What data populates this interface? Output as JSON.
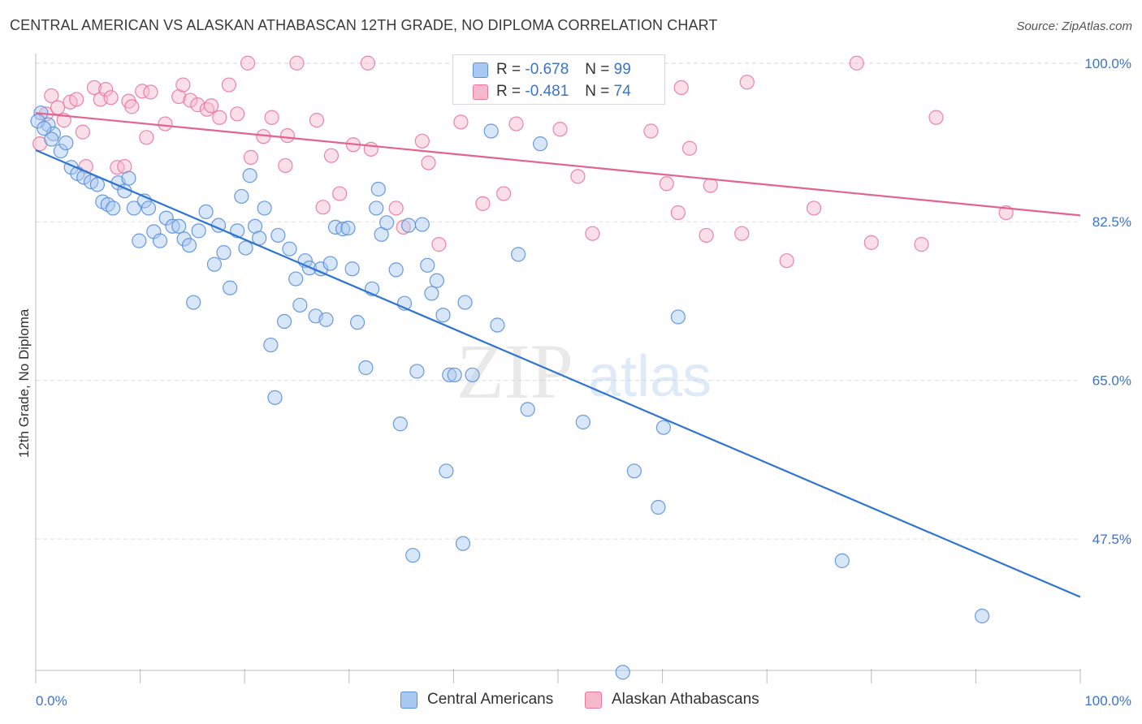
{
  "header": {
    "title": "CENTRAL AMERICAN VS ALASKAN ATHABASCAN 12TH GRADE, NO DIPLOMA CORRELATION CHART",
    "source": "Source: ZipAtlas.com"
  },
  "watermark": {
    "zip": "ZIP",
    "atlas": "atlas"
  },
  "legend_top": {
    "rows": [
      {
        "r_label": "R = ",
        "r_value": "-0.678",
        "n_label": "N = ",
        "n_value": "99"
      },
      {
        "r_label": "R = ",
        "r_value": "-0.481",
        "n_label": "N = ",
        "n_value": "74"
      }
    ]
  },
  "legend_bottom": {
    "items": [
      "Central Americans",
      "Alaskan Athabascans"
    ]
  },
  "colors": {
    "blue_fill": "#a9c8f2",
    "blue_stroke": "#5b8fd9",
    "blue_line": "#2f74d0",
    "pink_fill": "#f7b8cb",
    "pink_stroke": "#e8789c",
    "pink_line": "#e0648f",
    "tick_label": "#3b73c9",
    "grid": "#dddddd"
  },
  "chart_data": {
    "type": "scatter",
    "title": "CENTRAL AMERICAN VS ALASKAN ATHABASCAN 12TH GRADE, NO DIPLOMA CORRELATION CHART",
    "xlabel": "",
    "ylabel": "12th Grade, No Diploma",
    "xlim": [
      0,
      100
    ],
    "ylim": [
      33,
      101.5
    ],
    "x_tick_labels": [
      "0.0%",
      "100.0%"
    ],
    "y_ticks": [
      {
        "value": 100,
        "label": "100.0%"
      },
      {
        "value": 82.5,
        "label": "82.5%"
      },
      {
        "value": 65,
        "label": "65.0%"
      },
      {
        "value": 47.5,
        "label": "47.5%"
      }
    ],
    "grid": true,
    "legend_position": "bottom",
    "series": [
      {
        "name": "Central Americans",
        "r": -0.678,
        "n": 99,
        "trend": [
          [
            0,
            90.4
          ],
          [
            100,
            41.1
          ]
        ],
        "points": [
          [
            0.5,
            94.5
          ],
          [
            1.2,
            93.2
          ],
          [
            1.7,
            92.2
          ],
          [
            2.4,
            90.3
          ],
          [
            2.9,
            91.2
          ],
          [
            3.4,
            88.5
          ],
          [
            4.0,
            87.8
          ],
          [
            4.6,
            87.4
          ],
          [
            5.3,
            86.9
          ],
          [
            5.9,
            86.6
          ],
          [
            6.4,
            84.7
          ],
          [
            6.9,
            84.4
          ],
          [
            7.4,
            84.0
          ],
          [
            7.9,
            86.8
          ],
          [
            8.5,
            85.9
          ],
          [
            8.9,
            87.3
          ],
          [
            9.4,
            84.0
          ],
          [
            9.9,
            80.4
          ],
          [
            10.4,
            84.8
          ],
          [
            10.8,
            84.0
          ],
          [
            11.3,
            81.4
          ],
          [
            11.9,
            80.4
          ],
          [
            12.5,
            82.9
          ],
          [
            13.1,
            82.0
          ],
          [
            13.7,
            82.0
          ],
          [
            14.2,
            80.6
          ],
          [
            14.7,
            79.9
          ],
          [
            15.1,
            73.6
          ],
          [
            15.6,
            81.5
          ],
          [
            16.3,
            83.6
          ],
          [
            17.1,
            77.8
          ],
          [
            17.5,
            82.1
          ],
          [
            18.0,
            79.1
          ],
          [
            18.6,
            75.2
          ],
          [
            19.3,
            81.5
          ],
          [
            19.7,
            85.3
          ],
          [
            20.1,
            79.6
          ],
          [
            20.5,
            87.6
          ],
          [
            21.0,
            82.0
          ],
          [
            21.4,
            80.7
          ],
          [
            21.9,
            84.0
          ],
          [
            22.5,
            68.9
          ],
          [
            22.9,
            63.1
          ],
          [
            23.2,
            81.0
          ],
          [
            23.8,
            71.5
          ],
          [
            24.3,
            79.5
          ],
          [
            24.9,
            76.2
          ],
          [
            25.3,
            73.3
          ],
          [
            25.8,
            78.2
          ],
          [
            26.2,
            77.4
          ],
          [
            26.8,
            72.1
          ],
          [
            27.3,
            77.3
          ],
          [
            27.8,
            71.7
          ],
          [
            28.2,
            77.9
          ],
          [
            28.7,
            81.9
          ],
          [
            29.4,
            81.7
          ],
          [
            29.9,
            81.8
          ],
          [
            30.3,
            77.3
          ],
          [
            30.8,
            71.4
          ],
          [
            31.6,
            66.4
          ],
          [
            32.2,
            75.1
          ],
          [
            32.6,
            84.0
          ],
          [
            32.8,
            86.1
          ],
          [
            33.1,
            81.1
          ],
          [
            33.6,
            82.4
          ],
          [
            34.5,
            77.2
          ],
          [
            34.9,
            60.2
          ],
          [
            35.3,
            73.5
          ],
          [
            35.7,
            82.1
          ],
          [
            36.1,
            45.7
          ],
          [
            36.5,
            66.0
          ],
          [
            37.0,
            82.2
          ],
          [
            37.5,
            77.7
          ],
          [
            37.9,
            74.6
          ],
          [
            38.4,
            76.0
          ],
          [
            39.0,
            72.2
          ],
          [
            39.3,
            55.0
          ],
          [
            39.6,
            65.6
          ],
          [
            40.1,
            65.6
          ],
          [
            40.9,
            47.0
          ],
          [
            41.1,
            73.6
          ],
          [
            41.8,
            65.6
          ],
          [
            43.6,
            92.5
          ],
          [
            44.2,
            71.1
          ],
          [
            46.2,
            78.9
          ],
          [
            47.1,
            61.8
          ],
          [
            48.3,
            91.1
          ],
          [
            48.9,
            100.0
          ],
          [
            52.4,
            60.4
          ],
          [
            56.2,
            32.8
          ],
          [
            57.3,
            55.0
          ],
          [
            59.6,
            51.0
          ],
          [
            60.1,
            59.8
          ],
          [
            61.5,
            72.0
          ],
          [
            77.2,
            45.1
          ],
          [
            90.6,
            39.0
          ],
          [
            0.2,
            93.6
          ],
          [
            0.8,
            92.8
          ],
          [
            1.5,
            91.6
          ]
        ]
      },
      {
        "name": "Alaskan Athabascans",
        "r": -0.481,
        "n": 74,
        "trend": [
          [
            0,
            94.5
          ],
          [
            100,
            83.2
          ]
        ],
        "points": [
          [
            0.4,
            91.1
          ],
          [
            1.0,
            94.4
          ],
          [
            1.5,
            96.4
          ],
          [
            2.1,
            95.1
          ],
          [
            2.7,
            93.7
          ],
          [
            3.3,
            95.7
          ],
          [
            3.9,
            96.0
          ],
          [
            4.5,
            92.4
          ],
          [
            4.8,
            88.6
          ],
          [
            5.6,
            97.3
          ],
          [
            6.2,
            96.0
          ],
          [
            6.7,
            97.1
          ],
          [
            7.2,
            96.2
          ],
          [
            7.8,
            88.5
          ],
          [
            8.5,
            88.6
          ],
          [
            8.9,
            95.8
          ],
          [
            9.2,
            95.2
          ],
          [
            10.2,
            96.9
          ],
          [
            10.6,
            91.8
          ],
          [
            11.0,
            96.8
          ],
          [
            12.4,
            93.3
          ],
          [
            13.7,
            96.3
          ],
          [
            14.1,
            97.6
          ],
          [
            14.8,
            95.9
          ],
          [
            15.5,
            95.4
          ],
          [
            16.4,
            94.9
          ],
          [
            16.8,
            95.3
          ],
          [
            17.6,
            94.0
          ],
          [
            18.5,
            97.6
          ],
          [
            19.3,
            94.4
          ],
          [
            20.3,
            100.0
          ],
          [
            20.6,
            89.6
          ],
          [
            21.8,
            91.9
          ],
          [
            22.6,
            94.0
          ],
          [
            23.9,
            88.7
          ],
          [
            24.1,
            92.0
          ],
          [
            25.0,
            100.0
          ],
          [
            26.9,
            93.7
          ],
          [
            27.5,
            84.1
          ],
          [
            28.3,
            89.8
          ],
          [
            29.1,
            85.6
          ],
          [
            30.4,
            91.0
          ],
          [
            31.8,
            100.0
          ],
          [
            32.1,
            90.5
          ],
          [
            34.5,
            84.0
          ],
          [
            35.2,
            81.9
          ],
          [
            37.0,
            91.4
          ],
          [
            37.6,
            89.0
          ],
          [
            38.6,
            80.0
          ],
          [
            40.7,
            93.5
          ],
          [
            42.8,
            84.5
          ],
          [
            43.9,
            99.6
          ],
          [
            44.8,
            85.6
          ],
          [
            46.0,
            93.3
          ],
          [
            50.2,
            92.7
          ],
          [
            51.9,
            87.5
          ],
          [
            53.3,
            81.2
          ],
          [
            55.5,
            100.0
          ],
          [
            58.9,
            92.5
          ],
          [
            60.4,
            86.7
          ],
          [
            61.5,
            83.5
          ],
          [
            61.8,
            97.3
          ],
          [
            62.6,
            90.6
          ],
          [
            64.2,
            81.0
          ],
          [
            64.6,
            86.5
          ],
          [
            67.6,
            81.2
          ],
          [
            68.1,
            97.9
          ],
          [
            71.9,
            78.2
          ],
          [
            74.5,
            84.0
          ],
          [
            78.6,
            100.0
          ],
          [
            80.0,
            80.2
          ],
          [
            84.8,
            80.0
          ],
          [
            86.2,
            94.0
          ],
          [
            92.9,
            83.5
          ]
        ]
      }
    ]
  }
}
